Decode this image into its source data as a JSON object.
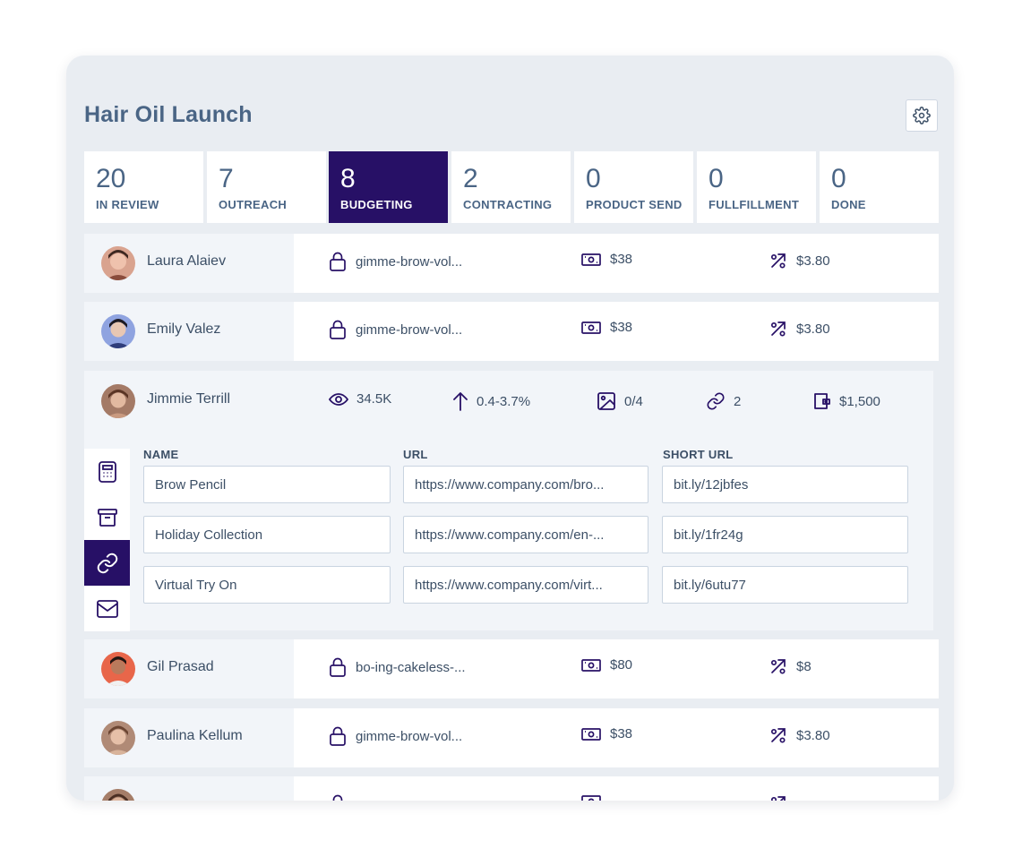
{
  "campaign": {
    "title": "Hair Oil Launch"
  },
  "stages": [
    {
      "count": "20",
      "label": "IN REVIEW",
      "active": false
    },
    {
      "count": "7",
      "label": "OUTREACH",
      "active": false
    },
    {
      "count": "8",
      "label": "BUDGETING",
      "active": true
    },
    {
      "count": "2",
      "label": "CONTRACTING",
      "active": false
    },
    {
      "count": "0",
      "label": "PRODUCT SEND",
      "active": false
    },
    {
      "count": "0",
      "label": "FULLFILLMENT",
      "active": false
    },
    {
      "count": "0",
      "label": "DONE",
      "active": false
    }
  ],
  "creators": [
    {
      "name": "Laura Alaiev",
      "code": "gimme-brow-vol...",
      "price": "$38",
      "commission": "$3.80"
    },
    {
      "name": "Emily Valez",
      "code": "gimme-brow-vol...",
      "price": "$38",
      "commission": "$3.80"
    },
    {
      "name": "Gil Prasad",
      "code": "bo-ing-cakeless-...",
      "price": "$80",
      "commission": "$8"
    },
    {
      "name": "Paulina Kellum",
      "code": "gimme-brow-vol...",
      "price": "$38",
      "commission": "$3.80"
    }
  ],
  "expanded": {
    "name": "Jimmie Terrill",
    "views": "34.5K",
    "engagement": "0.4-3.7%",
    "images": "0/4",
    "links": "2",
    "budget": "$1,500",
    "headers": {
      "name": "NAME",
      "url": "URL",
      "short_url": "SHORT URL"
    },
    "link_rows": [
      {
        "name": "Brow Pencil",
        "url": "https://www.company.com/bro...",
        "short": "bit.ly/12jbfes"
      },
      {
        "name": "Holiday Collection",
        "url": "https://www.company.com/en-...",
        "short": "bit.ly/1fr24g"
      },
      {
        "name": "Virtual Try On",
        "url": "https://www.company.com/virt...",
        "short": "bit.ly/6utu77"
      }
    ]
  },
  "colors": {
    "accent": "#271066",
    "text": "#3c4f66",
    "title": "#4a6585",
    "panel": "#e9edf2"
  },
  "icons": [
    "gear-icon",
    "lock-icon",
    "money-icon",
    "discount-icon",
    "eye-icon",
    "arrow-up-icon",
    "image-icon",
    "link-icon",
    "wallet-icon",
    "calculator-icon",
    "archive-icon",
    "mail-icon"
  ]
}
